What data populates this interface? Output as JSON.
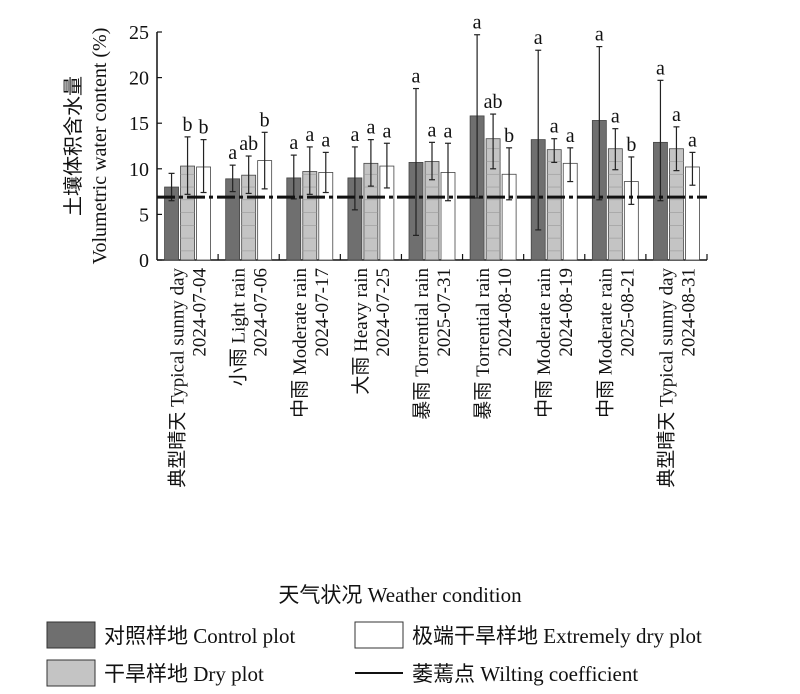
{
  "chart_data": {
    "type": "bar",
    "xlabel": "天气状况 Weather condition",
    "ylabel": [
      "土壤体积含水量",
      "Volumetric water content (%)"
    ],
    "ylim": [
      0,
      25
    ],
    "yticks": [
      0,
      5,
      10,
      15,
      20,
      25
    ],
    "categories": [
      {
        "weather": "典型晴天 Typical sunny day",
        "date": "2024-07-04"
      },
      {
        "weather": "小雨 Light rain",
        "date": "2024-07-06"
      },
      {
        "weather": "中雨 Moderate rain",
        "date": "2024-07-17"
      },
      {
        "weather": "大雨 Heavy rain",
        "date": "2024-07-25"
      },
      {
        "weather": "暴雨 Torrential rain",
        "date": "2025-07-31"
      },
      {
        "weather": "暴雨 Torrential rain",
        "date": "2024-08-10"
      },
      {
        "weather": "中雨 Moderate rain",
        "date": "2024-08-19"
      },
      {
        "weather": "中雨 Moderate rain",
        "date": "2025-08-21"
      },
      {
        "weather": "典型晴天 Typical sunny day",
        "date": "2024-08-31"
      }
    ],
    "series": [
      {
        "name": "对照样地 Control plot",
        "color": "#6f6f6f",
        "values": [
          8.0,
          8.9,
          9.0,
          9.0,
          10.7,
          15.8,
          13.2,
          15.3,
          12.9
        ],
        "err_low": [
          6.5,
          7.5,
          6.7,
          5.5,
          2.7,
          6.8,
          3.3,
          6.6,
          6.5
        ],
        "err_high": [
          9.5,
          10.4,
          11.5,
          12.4,
          18.8,
          24.7,
          23.0,
          23.4,
          19.7
        ],
        "letters": [
          "",
          "a",
          "a",
          "a",
          "a",
          "a",
          "a",
          "a",
          "a"
        ]
      },
      {
        "name": "干旱样地 Dry plot",
        "color": "#c4c4c4",
        "values": [
          10.3,
          9.3,
          9.7,
          10.6,
          10.8,
          13.3,
          12.1,
          12.2,
          12.2
        ],
        "err_low": [
          7.2,
          7.3,
          7.2,
          8.1,
          8.8,
          10.0,
          10.7,
          9.9,
          9.8
        ],
        "err_high": [
          13.5,
          11.4,
          12.4,
          13.2,
          12.9,
          16.0,
          13.3,
          14.4,
          14.6
        ],
        "letters": [
          "b",
          "ab",
          "a",
          "a",
          "a",
          "ab",
          "a",
          "a",
          "a"
        ]
      },
      {
        "name": "极端干旱样地 Extremely dry plot",
        "color": "#ffffff",
        "values": [
          10.2,
          10.9,
          9.6,
          10.3,
          9.6,
          9.4,
          10.6,
          8.6,
          10.2
        ],
        "err_low": [
          7.4,
          7.8,
          7.4,
          7.9,
          6.5,
          6.6,
          8.6,
          6.1,
          8.2
        ],
        "err_high": [
          13.2,
          14.0,
          11.8,
          12.8,
          12.8,
          12.3,
          12.3,
          11.3,
          11.8
        ],
        "letters": [
          "b",
          "b",
          "a",
          "a",
          "a",
          "b",
          "a",
          "b",
          "a"
        ]
      }
    ],
    "reference_line": {
      "name": "萎蔫点 Wilting coefficient",
      "value": 6.9
    },
    "legend": [
      {
        "label": "对照样地 Control plot",
        "kind": "box",
        "color": "#6f6f6f"
      },
      {
        "label": "极端干旱样地 Extremely dry plot",
        "kind": "box",
        "color": "#ffffff"
      },
      {
        "label": "干旱样地 Dry plot",
        "kind": "box",
        "color": "#c4c4c4"
      },
      {
        "label": "萎蔫点 Wilting coefficient",
        "kind": "line",
        "color": "#111111"
      }
    ],
    "legend_position": "bottom",
    "grid": false
  }
}
